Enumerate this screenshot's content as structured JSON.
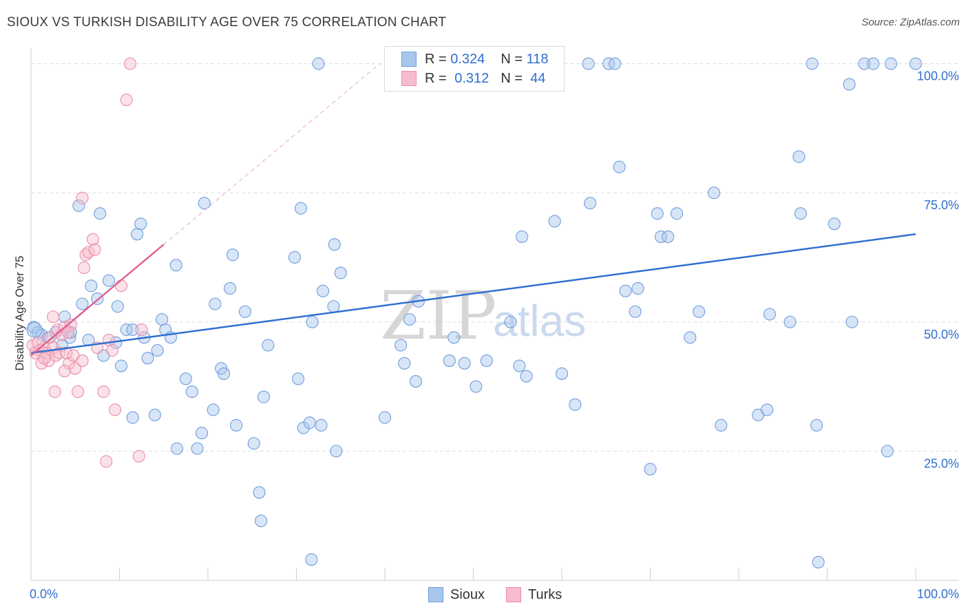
{
  "header": {
    "title": "SIOUX VS TURKISH DISABILITY AGE OVER 75 CORRELATION CHART",
    "source": "Source: ZipAtlas.com"
  },
  "legend": {
    "sioux": {
      "r_label": "R =",
      "r_value": "0.324",
      "n_label": "N =",
      "n_value": "118"
    },
    "turks": {
      "r_label": "R =",
      "r_value": "0.312",
      "n_label": "N =",
      "n_value": "44"
    }
  },
  "bottom_legend": {
    "sioux": "Sioux",
    "turks": "Turks"
  },
  "watermark": {
    "zip": "ZIP",
    "atlas": "atlas"
  },
  "colors": {
    "sioux_fill": "#a9c6ee",
    "sioux_stroke": "#6e9ddc",
    "sioux_line": "#2f6fd0",
    "turks_fill": "#f6bccd",
    "turks_stroke": "#e98eaa",
    "turks_line": "#e0628e",
    "axis_text": "#2f6fd0",
    "grid": "#dcdcdc"
  },
  "chart_data": {
    "type": "scatter",
    "title": "SIOUX VS TURKISH DISABILITY AGE OVER 75 CORRELATION CHART",
    "xlabel": "",
    "ylabel": "Disability Age Over 75",
    "xlim": [
      0,
      100
    ],
    "ylim": [
      0,
      103
    ],
    "x_tick_labels": [
      "0.0%",
      "100.0%"
    ],
    "y_ticks": [
      {
        "value": 25,
        "label": "25.0%"
      },
      {
        "value": 50,
        "label": "50.0%"
      },
      {
        "value": 75,
        "label": "75.0%"
      },
      {
        "value": 100,
        "label": "100.0%"
      }
    ],
    "grid": true,
    "legend_position": "top-center",
    "series": [
      {
        "name": "Sioux",
        "r": 0.324,
        "n": 118,
        "trend": {
          "x": [
            0,
            100
          ],
          "y": [
            44,
            67
          ]
        },
        "points": [
          [
            0.3,
            49
          ],
          [
            0.8,
            48
          ],
          [
            1.2,
            47.5
          ],
          [
            2,
            47
          ],
          [
            2.8,
            48
          ],
          [
            3.5,
            45.5
          ],
          [
            3.8,
            51
          ],
          [
            4.4,
            47
          ],
          [
            4.5,
            48
          ],
          [
            6.5,
            46.5
          ],
          [
            5.4,
            72.5
          ],
          [
            5.8,
            53.5
          ],
          [
            6.8,
            57
          ],
          [
            7.5,
            54.5
          ],
          [
            7.8,
            71
          ],
          [
            8.2,
            43.5
          ],
          [
            8.8,
            58
          ],
          [
            9.8,
            53
          ],
          [
            9.6,
            46
          ],
          [
            10.2,
            41.5
          ],
          [
            10.8,
            48.5
          ],
          [
            11.5,
            48.5
          ],
          [
            12,
            67
          ],
          [
            12.4,
            69
          ],
          [
            12.8,
            47
          ],
          [
            13.2,
            43
          ],
          [
            14,
            32
          ],
          [
            14.3,
            44.5
          ],
          [
            14.8,
            50.5
          ],
          [
            15.2,
            48.5
          ],
          [
            15.8,
            47
          ],
          [
            16.4,
            61
          ],
          [
            16.5,
            25.5
          ],
          [
            17.5,
            39
          ],
          [
            18.2,
            36.5
          ],
          [
            18.8,
            25.5
          ],
          [
            19.3,
            28.5
          ],
          [
            19.6,
            73
          ],
          [
            20.6,
            33
          ],
          [
            20.8,
            53.5
          ],
          [
            21.5,
            41
          ],
          [
            21.8,
            40
          ],
          [
            22.5,
            56.5
          ],
          [
            22.8,
            63
          ],
          [
            23.2,
            30
          ],
          [
            24.2,
            52
          ],
          [
            25.2,
            26.5
          ],
          [
            25.8,
            17
          ],
          [
            26.3,
            35.5
          ],
          [
            26.8,
            45.5
          ],
          [
            29.8,
            62.5
          ],
          [
            30.2,
            39
          ],
          [
            30.5,
            72
          ],
          [
            30.8,
            29.5
          ],
          [
            31.5,
            30.5
          ],
          [
            31.8,
            50
          ],
          [
            32.5,
            100
          ],
          [
            32.8,
            30
          ],
          [
            33,
            56
          ],
          [
            34.2,
            53
          ],
          [
            34.5,
            25
          ],
          [
            35,
            59.5
          ],
          [
            31.7,
            4
          ],
          [
            40,
            31.5
          ],
          [
            41.8,
            45.5
          ],
          [
            42.2,
            42
          ],
          [
            42.8,
            50.5
          ],
          [
            43.5,
            38.5
          ],
          [
            43.8,
            54
          ],
          [
            47.3,
            42.5
          ],
          [
            47.8,
            47
          ],
          [
            49,
            42
          ],
          [
            50.3,
            37.5
          ],
          [
            51.5,
            42.5
          ],
          [
            54.2,
            50
          ],
          [
            55.2,
            41.5
          ],
          [
            55.5,
            66.5
          ],
          [
            56,
            39.5
          ],
          [
            59.2,
            69.5
          ],
          [
            60,
            40
          ],
          [
            61.5,
            34
          ],
          [
            63,
            100
          ],
          [
            63.2,
            73
          ],
          [
            65.3,
            100
          ],
          [
            66,
            100
          ],
          [
            66.5,
            80
          ],
          [
            67.2,
            56
          ],
          [
            68.3,
            52
          ],
          [
            68.6,
            56.5
          ],
          [
            70,
            21.5
          ],
          [
            70.8,
            71
          ],
          [
            71.2,
            66.5
          ],
          [
            72,
            66.5
          ],
          [
            73,
            71
          ],
          [
            74.5,
            47
          ],
          [
            75.5,
            52
          ],
          [
            77.2,
            75
          ],
          [
            78,
            30
          ],
          [
            82.2,
            32
          ],
          [
            83.2,
            33
          ],
          [
            83.5,
            51.5
          ],
          [
            85.8,
            50
          ],
          [
            86.8,
            82
          ],
          [
            87,
            71
          ],
          [
            88.8,
            30
          ],
          [
            88.3,
            100
          ],
          [
            89,
            3.5
          ],
          [
            90.8,
            69
          ],
          [
            92.5,
            96
          ],
          [
            92.8,
            50
          ],
          [
            94.2,
            100
          ],
          [
            95.2,
            100
          ],
          [
            96.8,
            25
          ],
          [
            97.2,
            100
          ],
          [
            100,
            100
          ],
          [
            11.5,
            31.5
          ],
          [
            26,
            11.5
          ],
          [
            34.3,
            65
          ]
        ]
      },
      {
        "name": "Turks",
        "r": 0.312,
        "n": 44,
        "trend": {
          "x": [
            0,
            15
          ],
          "y": [
            43.5,
            65
          ]
        },
        "points": [
          [
            0.2,
            45.5
          ],
          [
            0.5,
            44
          ],
          [
            0.8,
            46
          ],
          [
            1,
            44.5
          ],
          [
            1.2,
            42
          ],
          [
            1.5,
            45
          ],
          [
            1.8,
            44
          ],
          [
            2,
            42.5
          ],
          [
            2.2,
            47
          ],
          [
            2.5,
            45
          ],
          [
            2.8,
            43.5
          ],
          [
            3,
            48.5
          ],
          [
            3.2,
            44
          ],
          [
            3.5,
            47.5
          ],
          [
            3.8,
            49
          ],
          [
            4,
            44
          ],
          [
            4.3,
            42
          ],
          [
            4.5,
            49.5
          ],
          [
            4.8,
            43.5
          ],
          [
            5,
            41
          ],
          [
            5.3,
            36.5
          ],
          [
            5.8,
            74
          ],
          [
            6,
            60.5
          ],
          [
            6.2,
            63
          ],
          [
            6.5,
            63.5
          ],
          [
            7,
            66
          ],
          [
            7.2,
            64
          ],
          [
            7.5,
            45
          ],
          [
            8.2,
            36.5
          ],
          [
            8.5,
            23
          ],
          [
            8.8,
            46.5
          ],
          [
            9.2,
            44.5
          ],
          [
            9.5,
            33
          ],
          [
            10.2,
            57
          ],
          [
            10.8,
            93
          ],
          [
            11.2,
            100
          ],
          [
            12.2,
            24
          ],
          [
            12.5,
            48.5
          ],
          [
            2.5,
            51
          ],
          [
            3.8,
            40.5
          ],
          [
            1.5,
            43
          ],
          [
            5.8,
            42.5
          ],
          [
            4.2,
            48
          ],
          [
            2.7,
            36.5
          ]
        ]
      }
    ]
  }
}
